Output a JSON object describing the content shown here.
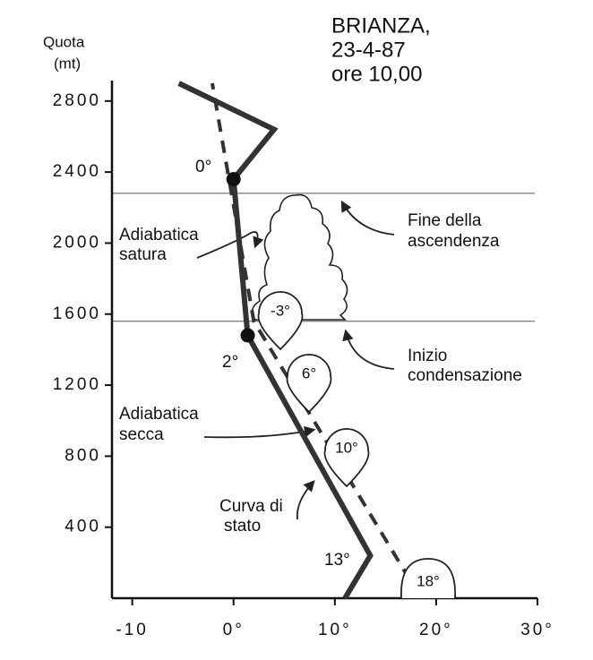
{
  "chart_data": {
    "type": "line",
    "title_lines": [
      "BRIANZA,",
      "23-4-87",
      "ore 10,00"
    ],
    "y_label_lines": [
      "Quota",
      "(mt)"
    ],
    "xlim": [
      -12,
      30
    ],
    "ylim": [
      0,
      2900
    ],
    "xticks": [
      {
        "value": -10,
        "label": "-10"
      },
      {
        "value": 0,
        "label": "0°"
      },
      {
        "value": 10,
        "label": "10°"
      },
      {
        "value": 20,
        "label": "20°"
      },
      {
        "value": 30,
        "label": "30°"
      }
    ],
    "yticks": [
      400,
      800,
      1200,
      1600,
      2000,
      2400,
      2800
    ],
    "levels": [
      1560,
      2280
    ],
    "series": [
      {
        "x": [
          11,
          13.5,
          1.4,
          0,
          4,
          -5.4
        ],
        "values": [
          0,
          240,
          1480,
          2360,
          2640,
          2900
        ],
        "color": "#333333",
        "dashed": false
      },
      {
        "x": [
          18.5,
          2,
          -2.1
        ],
        "values": [
          0,
          1560,
          2900
        ],
        "color": "#333333",
        "dashed": true
      }
    ],
    "point_labels": [
      "0°",
      "2°",
      "13°"
    ],
    "parcel_labels": [
      "-3°",
      "6°",
      "10°",
      "18°"
    ],
    "annotations": [
      "Adiabatica",
      "satura",
      "Fine della",
      "ascendenza",
      "Inizio",
      "condensazione",
      "Adiabatica",
      "secca",
      "Curva di",
      "stato"
    ]
  }
}
